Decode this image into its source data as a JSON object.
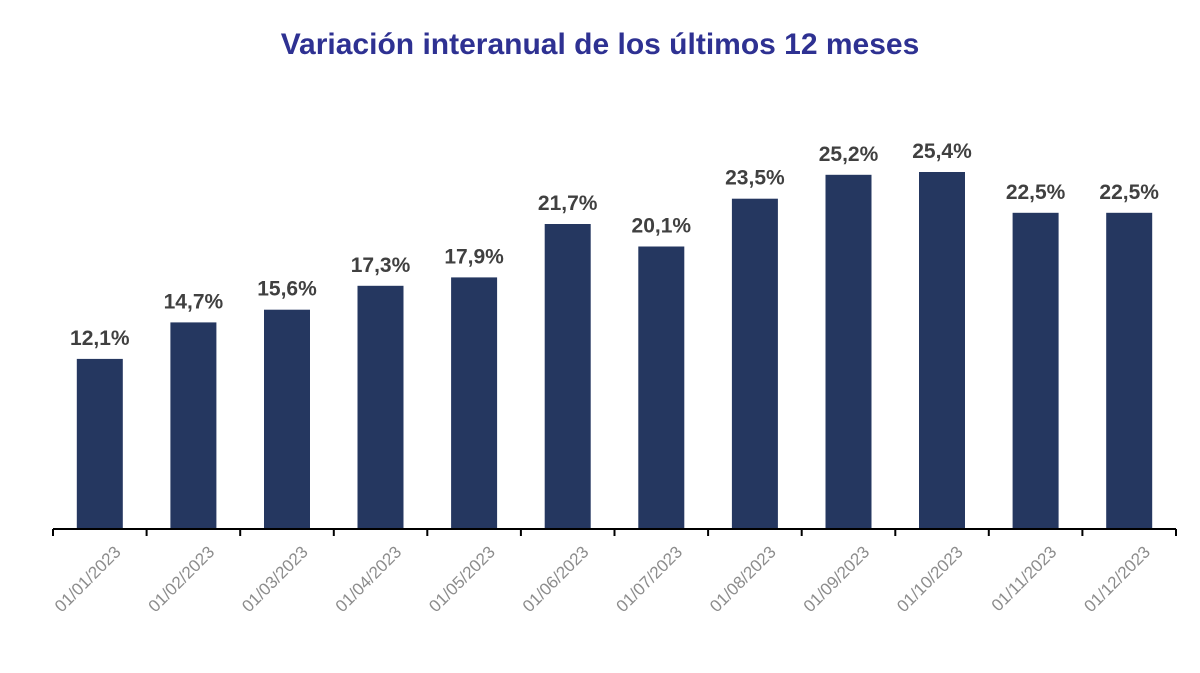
{
  "chart_data": {
    "type": "bar",
    "title": "Variación interanual de los últimos 12 meses",
    "categories": [
      "01/01/2023",
      "01/02/2023",
      "01/03/2023",
      "01/04/2023",
      "01/05/2023",
      "01/06/2023",
      "01/07/2023",
      "01/08/2023",
      "01/09/2023",
      "01/10/2023",
      "01/11/2023",
      "01/12/2023"
    ],
    "values": [
      12.1,
      14.7,
      15.6,
      17.3,
      17.9,
      21.7,
      20.1,
      23.5,
      25.2,
      25.4,
      22.5,
      22.5
    ],
    "data_labels": [
      "12,1%",
      "14,7%",
      "15,6%",
      "17,3%",
      "17,9%",
      "21,7%",
      "20,1%",
      "23,5%",
      "25,2%",
      "25,4%",
      "22,5%",
      "22,5%"
    ],
    "xlabel": "",
    "ylabel": "",
    "ylim": [
      0,
      25.4
    ],
    "grid": false,
    "legend": "none",
    "colors": {
      "bar": "#253760",
      "title": "#2e3192",
      "axis": "#000000",
      "data_label": "#404040",
      "tick_label": "#8c8c8c"
    }
  }
}
